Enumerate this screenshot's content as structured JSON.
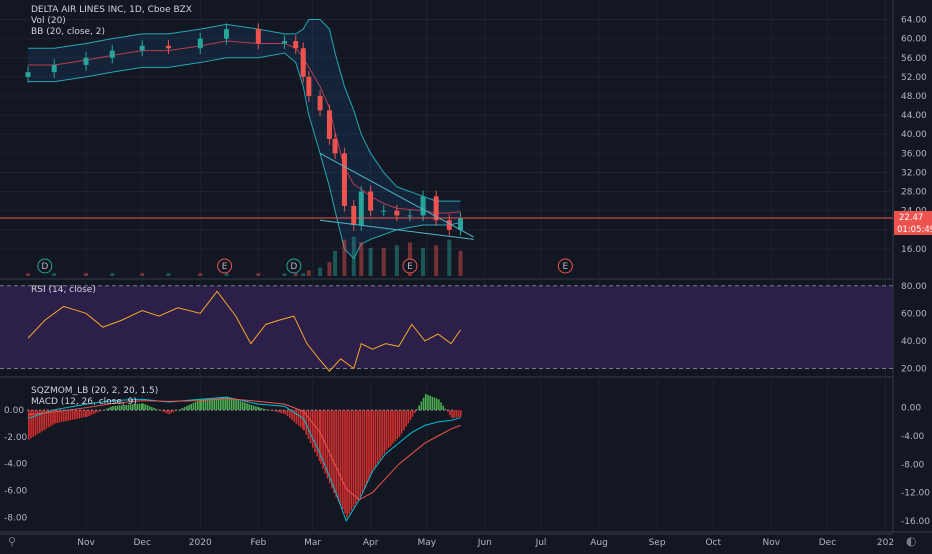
{
  "header": {
    "symbol_line": "DELTA AIR LINES INC, 1D, Cboe BZX",
    "vol_label": "Vol (20)",
    "bb_label": "BB (20, close, 2)",
    "rsi_label": "RSI (14, close)",
    "sqz_label": "SQZMOM_LB (20, 2, 20, 1.5)",
    "macd_label": "MACD (12, 26, close, 9)"
  },
  "price_tags": {
    "last": "22.47",
    "countdown": "01:05:49",
    "last_color": "#ef5350"
  },
  "corner_left": "⚲",
  "corner_right": "◐",
  "chart_data": [
    {
      "type": "line",
      "name": "price",
      "ylim": [
        12,
        66
      ],
      "yticks": [
        "64.00",
        "60.00",
        "56.00",
        "52.00",
        "48.00",
        "44.00",
        "40.00",
        "36.00",
        "32.00",
        "28.00",
        "24.00",
        "20.00",
        "16.00"
      ],
      "x": [
        "2019-10-01",
        "2019-10-15",
        "2019-11-01",
        "2019-11-15",
        "2019-12-01",
        "2019-12-15",
        "2020-01-01",
        "2020-01-15",
        "2020-02-01",
        "2020-02-15",
        "2020-02-21",
        "2020-02-25",
        "2020-02-28",
        "2020-03-05",
        "2020-03-10",
        "2020-03-13",
        "2020-03-18",
        "2020-03-23",
        "2020-03-27",
        "2020-04-01",
        "2020-04-08",
        "2020-04-15",
        "2020-04-22",
        "2020-04-29",
        "2020-05-06",
        "2020-05-13",
        "2020-05-19"
      ],
      "close": [
        53,
        54.5,
        56,
        57.5,
        58.5,
        58,
        60,
        62,
        59,
        59.5,
        58,
        52,
        48,
        45,
        39,
        36,
        25,
        21,
        28,
        24,
        24,
        23,
        23,
        27,
        22,
        20,
        22.47
      ],
      "bb_upper": [
        58,
        58,
        59,
        60,
        61,
        61,
        62,
        63,
        62,
        61,
        61,
        62,
        64,
        64,
        62,
        57,
        50,
        45,
        40,
        36,
        32,
        29,
        28,
        27,
        26,
        26,
        26
      ],
      "bb_lower": [
        51,
        51,
        52,
        53,
        54,
        54,
        55,
        56,
        56,
        57,
        55,
        50,
        44,
        36,
        29,
        24,
        16,
        14,
        17,
        18,
        19,
        20,
        20.5,
        21,
        21,
        21,
        21.5
      ],
      "wedge_upper": [
        [
          "2020-03-05",
          36
        ],
        [
          "2020-05-26",
          18.5
        ]
      ],
      "wedge_lower": [
        [
          "2020-03-05",
          22
        ],
        [
          "2020-05-26",
          18
        ]
      ],
      "horizontal_line": 22.47
    },
    {
      "type": "bar",
      "name": "volume",
      "values": [
        1,
        1,
        1,
        1,
        1,
        1,
        1,
        1,
        1,
        1,
        1,
        1,
        2,
        3,
        5,
        9,
        13,
        14,
        12,
        10,
        10,
        11,
        12,
        10,
        11,
        13,
        9
      ],
      "event_markers": [
        {
          "date": "2019-10-10",
          "letter": "D",
          "color": "#26a69a"
        },
        {
          "date": "2020-01-14",
          "letter": "E",
          "color": "#ef5350"
        },
        {
          "date": "2020-02-20",
          "letter": "D",
          "color": "#26a69a"
        },
        {
          "date": "2020-04-22",
          "letter": "E",
          "color": "#ef5350"
        },
        {
          "date": "2020-07-14",
          "letter": "E",
          "color": "#ef5350"
        }
      ]
    },
    {
      "type": "line",
      "name": "RSI (14, close)",
      "ylim": [
        16,
        82
      ],
      "yticks": [
        "80.00",
        "60.00",
        "40.00",
        "20.00"
      ],
      "bands": [
        20,
        80
      ],
      "x": [
        "2019-10-01",
        "2019-10-10",
        "2019-10-20",
        "2019-11-01",
        "2019-11-10",
        "2019-11-20",
        "2019-12-01",
        "2019-12-10",
        "2019-12-20",
        "2020-01-01",
        "2020-01-10",
        "2020-01-20",
        "2020-01-28",
        "2020-02-05",
        "2020-02-12",
        "2020-02-20",
        "2020-02-27",
        "2020-03-05",
        "2020-03-10",
        "2020-03-16",
        "2020-03-23",
        "2020-03-27",
        "2020-04-02",
        "2020-04-09",
        "2020-04-16",
        "2020-04-23",
        "2020-04-30",
        "2020-05-07",
        "2020-05-14",
        "2020-05-19"
      ],
      "values": [
        42,
        55,
        65,
        60,
        50,
        55,
        62,
        58,
        64,
        60,
        76,
        58,
        38,
        52,
        55,
        58,
        38,
        26,
        18,
        27,
        20,
        38,
        34,
        38,
        36,
        52,
        40,
        45,
        38,
        48
      ]
    },
    {
      "type": "bar",
      "name": "SQZMOM_LB (20, 2, 20, 1.5)",
      "ylim": [
        -8.8,
        1.5
      ],
      "yticks": [
        "0.00",
        "-2.00",
        "-4.00",
        "-6.00",
        "-8.00"
      ],
      "x": [
        "2019-10-01",
        "2019-10-15",
        "2019-11-01",
        "2019-11-15",
        "2019-12-01",
        "2019-12-15",
        "2020-01-01",
        "2020-01-15",
        "2020-02-01",
        "2020-02-15",
        "2020-02-25",
        "2020-03-05",
        "2020-03-12",
        "2020-03-19",
        "2020-03-26",
        "2020-04-02",
        "2020-04-09",
        "2020-04-16",
        "2020-04-23",
        "2020-04-30",
        "2020-05-07",
        "2020-05-14",
        "2020-05-19"
      ],
      "values": [
        -2.2,
        -1.0,
        -0.5,
        0.3,
        0.5,
        -0.3,
        0.8,
        1.0,
        0.2,
        -0.3,
        -1.5,
        -4.0,
        -6.2,
        -8.0,
        -6.5,
        -4.5,
        -3.0,
        -2.0,
        -0.5,
        1.2,
        0.8,
        -0.6,
        -0.5
      ],
      "macd_ylim": [
        -17,
        2.5
      ],
      "macd_yticks": [
        "0.00",
        "-4.00",
        "-8.00",
        "-12.00",
        "-16.00"
      ],
      "macd": [
        -1.5,
        -0.3,
        0.5,
        1.0,
        1.2,
        0.8,
        1.2,
        1.5,
        0.5,
        0.2,
        -1.5,
        -6.5,
        -11,
        -16,
        -13,
        -9,
        -6.5,
        -5,
        -3.5,
        -2.5,
        -2.0,
        -1.8,
        -1.4
      ],
      "signal": [
        -1.0,
        -0.6,
        0.0,
        0.6,
        1.0,
        0.9,
        1.0,
        1.3,
        0.9,
        0.5,
        -0.5,
        -3.5,
        -7.5,
        -11.5,
        -13,
        -12,
        -10,
        -8,
        -6.5,
        -5,
        -4,
        -3,
        -2.5
      ]
    }
  ],
  "x_axis": {
    "labels": [
      {
        "date": "2019-11-01",
        "text": "Nov"
      },
      {
        "date": "2019-12-01",
        "text": "Dec"
      },
      {
        "date": "2020-01-01",
        "text": "2020"
      },
      {
        "date": "2020-02-01",
        "text": "Feb"
      },
      {
        "date": "2020-03-01",
        "text": "Mar"
      },
      {
        "date": "2020-04-01",
        "text": "Apr"
      },
      {
        "date": "2020-05-01",
        "text": "May"
      },
      {
        "date": "2020-06-01",
        "text": "Jun"
      },
      {
        "date": "2020-07-01",
        "text": "Jul"
      },
      {
        "date": "2020-08-01",
        "text": "Aug"
      },
      {
        "date": "2020-09-01",
        "text": "Sep"
      },
      {
        "date": "2020-10-01",
        "text": "Oct"
      },
      {
        "date": "2020-11-01",
        "text": "Nov"
      },
      {
        "date": "2020-12-01",
        "text": "Dec"
      },
      {
        "date": "2021-01-01",
        "text": "202"
      }
    ]
  },
  "colors": {
    "background": "#131722",
    "up": "#26a69a",
    "down": "#ef5350",
    "bb": "#2196f3",
    "rsi_line": "#f5a623",
    "rsi_band": "#2c1f4a",
    "macd": "#00bcd4",
    "signal": "#ef5350",
    "grid": "#1e2230"
  }
}
